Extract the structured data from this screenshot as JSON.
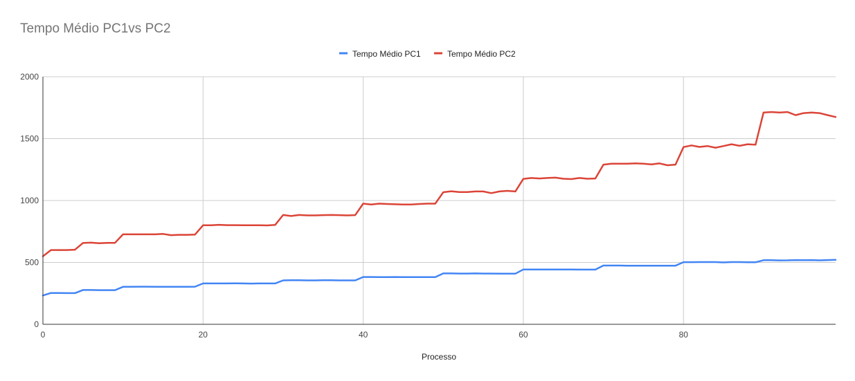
{
  "chart_data": {
    "type": "line",
    "title": "Tempo Médio PC1vs PC2",
    "xlabel": "Processo",
    "ylabel": "",
    "xlim": [
      0,
      99
    ],
    "ylim": [
      0,
      2000
    ],
    "x_ticks": [
      0,
      20,
      40,
      60,
      80
    ],
    "y_ticks": [
      0,
      500,
      1000,
      1500,
      2000
    ],
    "grid": true,
    "legend_position": "top",
    "colors": {
      "pc1": "#4285f4",
      "pc2": "#db4437"
    },
    "series": [
      {
        "name": "Tempo Médio PC1",
        "color": "#4285f4",
        "values": [
          233,
          253,
          253,
          252,
          252,
          277,
          277,
          276,
          276,
          276,
          303,
          303,
          304,
          304,
          303,
          303,
          303,
          303,
          303,
          304,
          330,
          330,
          330,
          330,
          331,
          330,
          329,
          330,
          330,
          330,
          355,
          356,
          356,
          355,
          355,
          356,
          356,
          355,
          355,
          355,
          382,
          382,
          381,
          381,
          382,
          381,
          381,
          381,
          381,
          381,
          411,
          411,
          410,
          410,
          411,
          410,
          410,
          409,
          409,
          409,
          443,
          443,
          443,
          443,
          443,
          443,
          443,
          442,
          442,
          442,
          475,
          475,
          475,
          474,
          474,
          474,
          474,
          474,
          474,
          474,
          502,
          502,
          503,
          503,
          503,
          500,
          503,
          503,
          501,
          501,
          518,
          518,
          516,
          517,
          519,
          518,
          519,
          517,
          519,
          521
        ]
      },
      {
        "name": "Tempo Médio PC2",
        "color": "#db4437",
        "values": [
          550,
          600,
          600,
          600,
          603,
          657,
          660,
          655,
          658,
          658,
          727,
          727,
          727,
          727,
          727,
          730,
          720,
          723,
          723,
          725,
          800,
          800,
          804,
          801,
          801,
          800,
          800,
          800,
          799,
          803,
          883,
          875,
          883,
          880,
          880,
          882,
          883,
          882,
          880,
          882,
          975,
          968,
          975,
          972,
          970,
          968,
          968,
          972,
          975,
          975,
          1067,
          1075,
          1068,
          1068,
          1073,
          1073,
          1060,
          1073,
          1078,
          1073,
          1175,
          1182,
          1178,
          1182,
          1185,
          1176,
          1173,
          1182,
          1176,
          1178,
          1290,
          1297,
          1297,
          1297,
          1300,
          1297,
          1292,
          1300,
          1285,
          1290,
          1432,
          1445,
          1433,
          1440,
          1427,
          1440,
          1455,
          1442,
          1455,
          1451,
          1711,
          1715,
          1711,
          1715,
          1690,
          1706,
          1711,
          1706,
          1690,
          1675
        ]
      }
    ]
  }
}
